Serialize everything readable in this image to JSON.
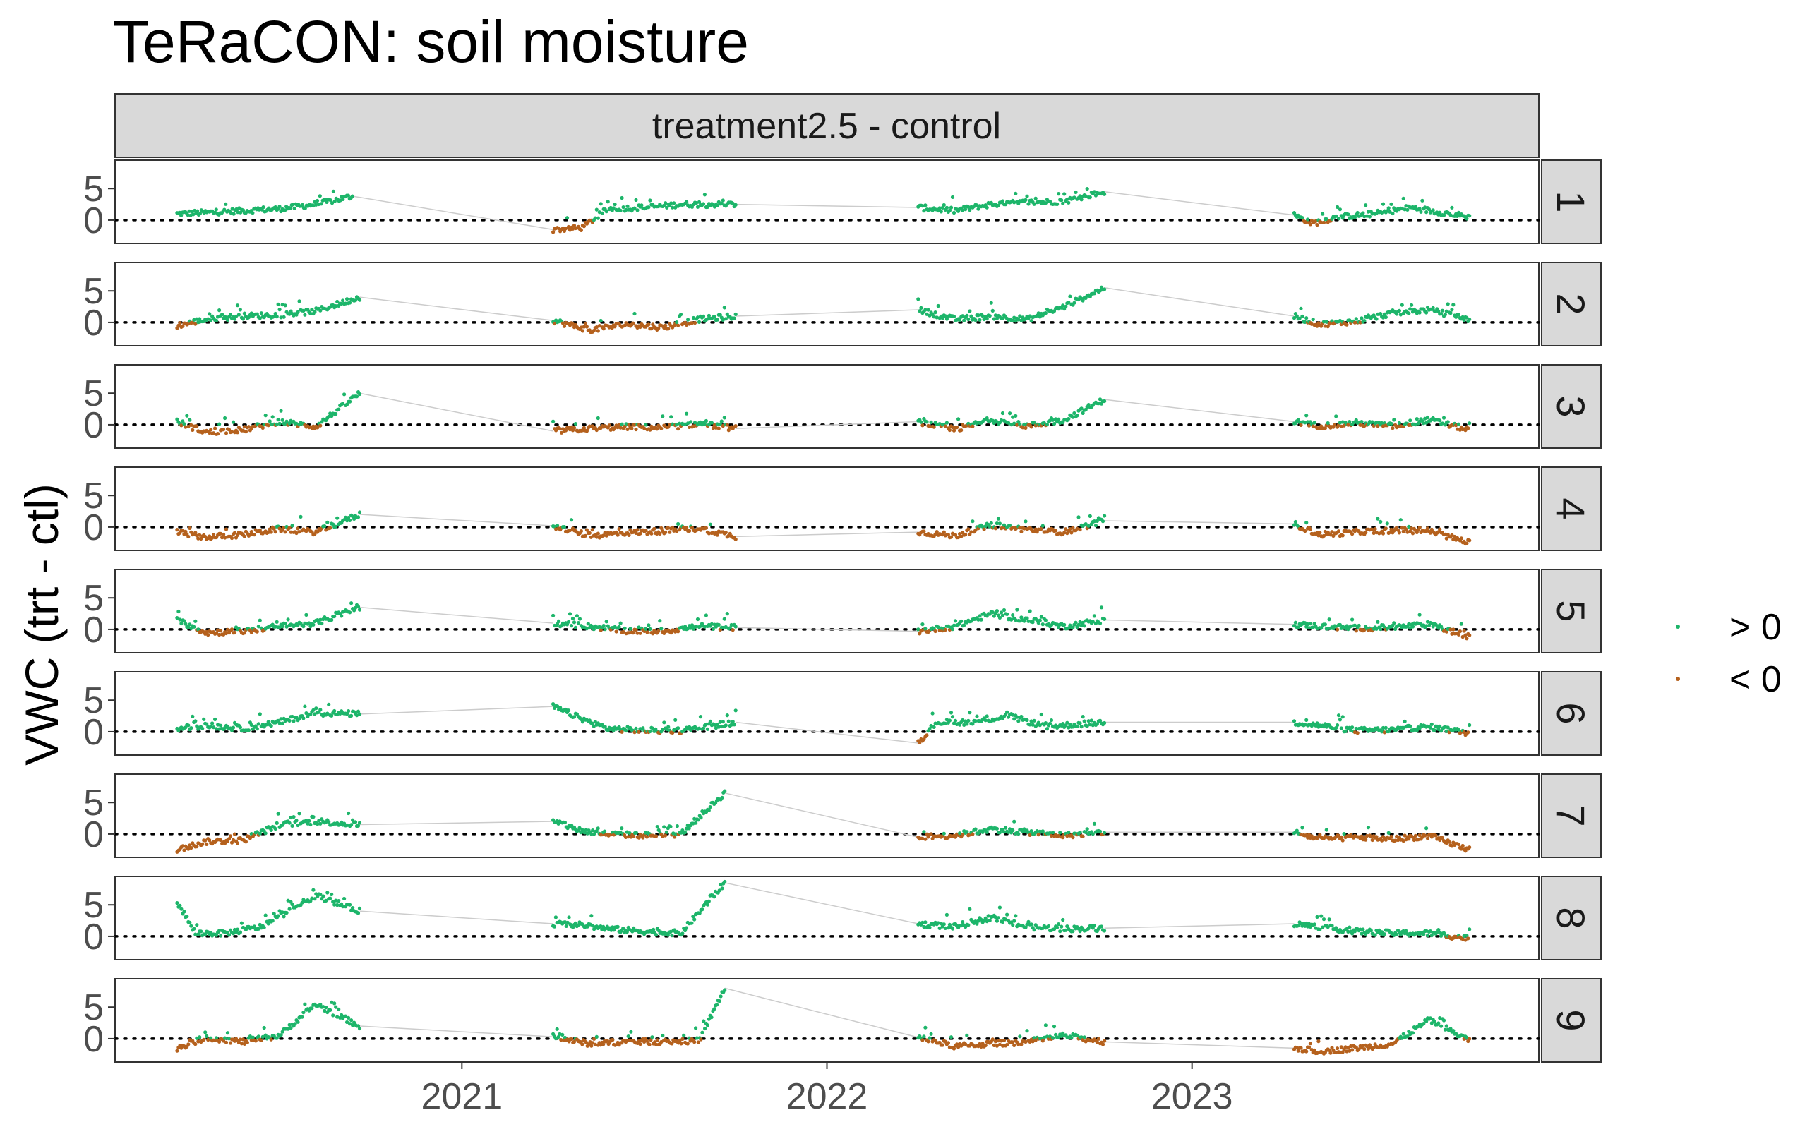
{
  "chart_data": {
    "type": "scatter",
    "title": "TeRaCON: soil moisture",
    "ylabel": "VWC (trt - ctl)",
    "xlabel": "",
    "strip_top": "treatment2.5 - control",
    "x_ticks": [
      "2021",
      "2022",
      "2023"
    ],
    "x_tick_values": [
      2021.0,
      2022.0,
      2023.0
    ],
    "xlim": [
      2020.05,
      2023.95
    ],
    "y_ticks": [
      "0",
      "5"
    ],
    "y_tick_values": [
      0,
      5
    ],
    "ylim": [
      -3.7,
      9.5
    ],
    "reference_line": 0,
    "grid": false,
    "legend_position": "right",
    "legend": [
      {
        "label": "> 0",
        "color": "#1db56a"
      },
      {
        "label": "< 0",
        "color": "#b5611d"
      }
    ],
    "seasons": [
      [
        2020.22,
        2020.72
      ],
      [
        2021.25,
        2021.75
      ],
      [
        2022.25,
        2022.76
      ],
      [
        2023.28,
        2023.76
      ]
    ],
    "panels": [
      {
        "label": "1",
        "seasons": [
          [
            [
              2020.22,
              1.0
            ],
            [
              2020.3,
              1.2
            ],
            [
              2020.4,
              1.5
            ],
            [
              2020.5,
              1.8
            ],
            [
              2020.6,
              2.5
            ],
            [
              2020.7,
              3.8
            ]
          ],
          [
            [
              2021.25,
              -1.5
            ],
            [
              2021.33,
              -1.2
            ],
            [
              2021.4,
              1.8
            ],
            [
              2021.5,
              2.0
            ],
            [
              2021.6,
              2.5
            ],
            [
              2021.75,
              2.5
            ]
          ],
          [
            [
              2022.25,
              2.0
            ],
            [
              2022.35,
              1.5
            ],
            [
              2022.45,
              2.5
            ],
            [
              2022.55,
              2.8
            ],
            [
              2022.65,
              3.0
            ],
            [
              2022.76,
              4.5
            ]
          ],
          [
            [
              2023.28,
              0.8
            ],
            [
              2023.33,
              -0.5
            ],
            [
              2023.4,
              0.5
            ],
            [
              2023.5,
              1.0
            ],
            [
              2023.6,
              2.0
            ],
            [
              2023.76,
              0.5
            ]
          ]
        ]
      },
      {
        "label": "2",
        "seasons": [
          [
            [
              2020.22,
              -0.5
            ],
            [
              2020.3,
              0.5
            ],
            [
              2020.4,
              1.0
            ],
            [
              2020.5,
              1.2
            ],
            [
              2020.6,
              1.8
            ],
            [
              2020.72,
              4.0
            ]
          ],
          [
            [
              2021.25,
              0.3
            ],
            [
              2021.35,
              -1.2
            ],
            [
              2021.45,
              -0.3
            ],
            [
              2021.55,
              -0.8
            ],
            [
              2021.65,
              0.5
            ],
            [
              2021.75,
              1.0
            ]
          ],
          [
            [
              2022.25,
              2.0
            ],
            [
              2022.35,
              0.5
            ],
            [
              2022.45,
              1.0
            ],
            [
              2022.55,
              0.5
            ],
            [
              2022.65,
              2.5
            ],
            [
              2022.76,
              5.5
            ]
          ],
          [
            [
              2023.28,
              1.0
            ],
            [
              2023.35,
              -0.3
            ],
            [
              2023.45,
              0.2
            ],
            [
              2023.55,
              1.5
            ],
            [
              2023.65,
              2.0
            ],
            [
              2023.76,
              0.5
            ]
          ]
        ]
      },
      {
        "label": "3",
        "seasons": [
          [
            [
              2020.22,
              0.5
            ],
            [
              2020.3,
              -1.2
            ],
            [
              2020.4,
              -0.8
            ],
            [
              2020.5,
              0.5
            ],
            [
              2020.6,
              -0.3
            ],
            [
              2020.72,
              5.0
            ]
          ],
          [
            [
              2021.25,
              -1.0
            ],
            [
              2021.35,
              -0.6
            ],
            [
              2021.45,
              -0.3
            ],
            [
              2021.55,
              -0.5
            ],
            [
              2021.65,
              0.2
            ],
            [
              2021.75,
              -0.6
            ]
          ],
          [
            [
              2022.25,
              0.5
            ],
            [
              2022.35,
              -0.8
            ],
            [
              2022.45,
              0.8
            ],
            [
              2022.55,
              -0.2
            ],
            [
              2022.65,
              0.8
            ],
            [
              2022.76,
              4.0
            ]
          ],
          [
            [
              2023.28,
              0.5
            ],
            [
              2023.35,
              -0.2
            ],
            [
              2023.45,
              0.3
            ],
            [
              2023.55,
              -0.2
            ],
            [
              2023.65,
              0.8
            ],
            [
              2023.76,
              -0.8
            ]
          ]
        ]
      },
      {
        "label": "4",
        "seasons": [
          [
            [
              2020.22,
              -0.8
            ],
            [
              2020.3,
              -1.6
            ],
            [
              2020.4,
              -1.2
            ],
            [
              2020.5,
              -0.3
            ],
            [
              2020.6,
              -0.8
            ],
            [
              2020.72,
              2.0
            ]
          ],
          [
            [
              2021.25,
              0.2
            ],
            [
              2021.35,
              -1.4
            ],
            [
              2021.45,
              -0.9
            ],
            [
              2021.55,
              -0.6
            ],
            [
              2021.65,
              -0.2
            ],
            [
              2021.75,
              -1.5
            ]
          ],
          [
            [
              2022.25,
              -0.8
            ],
            [
              2022.35,
              -1.4
            ],
            [
              2022.45,
              0.3
            ],
            [
              2022.55,
              -0.4
            ],
            [
              2022.65,
              -0.8
            ],
            [
              2022.76,
              1.0
            ]
          ],
          [
            [
              2023.28,
              0.5
            ],
            [
              2023.35,
              -1.2
            ],
            [
              2023.45,
              -0.8
            ],
            [
              2023.55,
              -0.5
            ],
            [
              2023.65,
              -0.6
            ],
            [
              2023.76,
              -2.5
            ]
          ]
        ]
      },
      {
        "label": "5",
        "seasons": [
          [
            [
              2020.22,
              1.5
            ],
            [
              2020.3,
              -0.5
            ],
            [
              2020.4,
              -0.3
            ],
            [
              2020.5,
              0.5
            ],
            [
              2020.6,
              1.0
            ],
            [
              2020.72,
              3.5
            ]
          ],
          [
            [
              2021.25,
              1.0
            ],
            [
              2021.35,
              0.5
            ],
            [
              2021.45,
              -0.2
            ],
            [
              2021.55,
              -0.3
            ],
            [
              2021.65,
              0.5
            ],
            [
              2021.75,
              0.3
            ]
          ],
          [
            [
              2022.25,
              -0.3
            ],
            [
              2022.35,
              0.5
            ],
            [
              2022.45,
              2.5
            ],
            [
              2022.55,
              1.5
            ],
            [
              2022.65,
              0.5
            ],
            [
              2022.76,
              1.5
            ]
          ],
          [
            [
              2023.28,
              0.8
            ],
            [
              2023.35,
              0.5
            ],
            [
              2023.45,
              0.2
            ],
            [
              2023.55,
              0.3
            ],
            [
              2023.65,
              0.8
            ],
            [
              2023.76,
              -1.2
            ]
          ]
        ]
      },
      {
        "label": "6",
        "seasons": [
          [
            [
              2020.22,
              0.5
            ],
            [
              2020.3,
              1.0
            ],
            [
              2020.4,
              0.5
            ],
            [
              2020.5,
              1.5
            ],
            [
              2020.6,
              3.0
            ],
            [
              2020.72,
              2.8
            ]
          ],
          [
            [
              2021.25,
              4.0
            ],
            [
              2021.33,
              2.0
            ],
            [
              2021.4,
              0.5
            ],
            [
              2021.5,
              0.2
            ],
            [
              2021.6,
              0.2
            ],
            [
              2021.75,
              1.5
            ]
          ],
          [
            [
              2022.25,
              -1.8
            ],
            [
              2022.3,
              1.5
            ],
            [
              2022.4,
              1.5
            ],
            [
              2022.5,
              2.5
            ],
            [
              2022.6,
              0.8
            ],
            [
              2022.76,
              1.5
            ]
          ],
          [
            [
              2023.28,
              1.5
            ],
            [
              2023.35,
              1.0
            ],
            [
              2023.45,
              0.2
            ],
            [
              2023.55,
              0.3
            ],
            [
              2023.65,
              0.8
            ],
            [
              2023.76,
              -0.2
            ]
          ]
        ]
      },
      {
        "label": "7",
        "seasons": [
          [
            [
              2020.22,
              -2.5
            ],
            [
              2020.3,
              -1.2
            ],
            [
              2020.4,
              -1.0
            ],
            [
              2020.5,
              1.5
            ],
            [
              2020.6,
              2.0
            ],
            [
              2020.72,
              1.5
            ]
          ],
          [
            [
              2021.25,
              2.0
            ],
            [
              2021.33,
              0.5
            ],
            [
              2021.4,
              0.0
            ],
            [
              2021.5,
              -0.2
            ],
            [
              2021.6,
              0.0
            ],
            [
              2021.72,
              6.5
            ]
          ],
          [
            [
              2022.25,
              -0.5
            ],
            [
              2022.35,
              -0.2
            ],
            [
              2022.45,
              0.8
            ],
            [
              2022.55,
              0.3
            ],
            [
              2022.65,
              -0.2
            ],
            [
              2022.76,
              0.3
            ]
          ],
          [
            [
              2023.28,
              0.3
            ],
            [
              2023.35,
              -0.8
            ],
            [
              2023.45,
              -0.5
            ],
            [
              2023.55,
              -0.8
            ],
            [
              2023.65,
              -0.3
            ],
            [
              2023.76,
              -2.5
            ]
          ]
        ]
      },
      {
        "label": "8",
        "seasons": [
          [
            [
              2020.22,
              5.5
            ],
            [
              2020.27,
              0.5
            ],
            [
              2020.35,
              0.5
            ],
            [
              2020.45,
              1.5
            ],
            [
              2020.6,
              6.5
            ],
            [
              2020.72,
              4.0
            ]
          ],
          [
            [
              2021.25,
              2.0
            ],
            [
              2021.33,
              1.8
            ],
            [
              2021.4,
              1.2
            ],
            [
              2021.5,
              0.8
            ],
            [
              2021.6,
              0.5
            ],
            [
              2021.72,
              8.5
            ]
          ],
          [
            [
              2022.25,
              2.0
            ],
            [
              2022.35,
              1.5
            ],
            [
              2022.45,
              3.0
            ],
            [
              2022.55,
              1.5
            ],
            [
              2022.65,
              1.2
            ],
            [
              2022.76,
              1.3
            ]
          ],
          [
            [
              2023.28,
              2.0
            ],
            [
              2023.35,
              1.5
            ],
            [
              2023.45,
              0.8
            ],
            [
              2023.55,
              0.5
            ],
            [
              2023.65,
              0.5
            ],
            [
              2023.76,
              -0.3
            ]
          ]
        ]
      },
      {
        "label": "9",
        "seasons": [
          [
            [
              2020.22,
              -1.5
            ],
            [
              2020.3,
              0.2
            ],
            [
              2020.4,
              -0.5
            ],
            [
              2020.5,
              0.5
            ],
            [
              2020.6,
              5.5
            ],
            [
              2020.72,
              2.0
            ]
          ],
          [
            [
              2021.25,
              0.3
            ],
            [
              2021.35,
              -0.8
            ],
            [
              2021.45,
              -0.5
            ],
            [
              2021.55,
              -0.5
            ],
            [
              2021.65,
              -0.3
            ],
            [
              2021.72,
              8.0
            ]
          ],
          [
            [
              2022.25,
              0.2
            ],
            [
              2022.35,
              -1.2
            ],
            [
              2022.45,
              -0.8
            ],
            [
              2022.55,
              -0.5
            ],
            [
              2022.65,
              0.5
            ],
            [
              2022.76,
              -0.5
            ]
          ],
          [
            [
              2023.28,
              -1.5
            ],
            [
              2023.35,
              -2.0
            ],
            [
              2023.45,
              -1.5
            ],
            [
              2023.55,
              -0.8
            ],
            [
              2023.65,
              3.0
            ],
            [
              2023.76,
              -0.3
            ]
          ]
        ]
      }
    ]
  }
}
